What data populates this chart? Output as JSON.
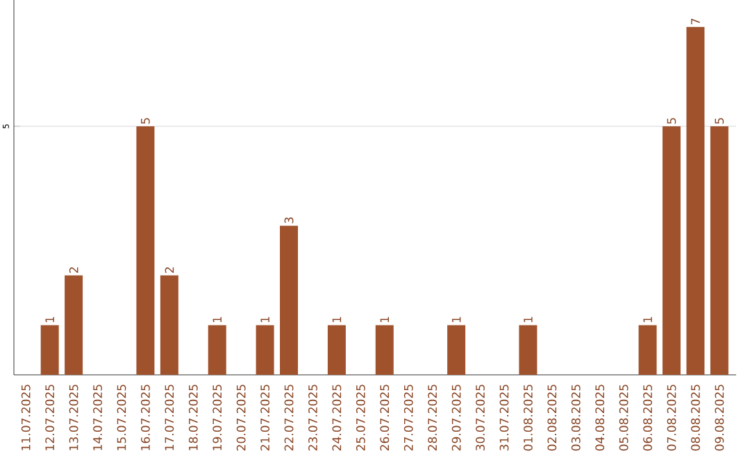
{
  "chart_data": {
    "type": "bar",
    "categories": [
      "11.07.2025",
      "12.07.2025",
      "13.07.2025",
      "14.07.2025",
      "15.07.2025",
      "16.07.2025",
      "17.07.2025",
      "18.07.2025",
      "19.07.2025",
      "20.07.2025",
      "21.07.2025",
      "22.07.2025",
      "23.07.2025",
      "24.07.2025",
      "25.07.2025",
      "26.07.2025",
      "27.07.2025",
      "28.07.2025",
      "29.07.2025",
      "30.07.2025",
      "31.07.2025",
      "01.08.2025",
      "02.08.2025",
      "03.08.2025",
      "04.08.2025",
      "05.08.2025",
      "06.08.2025",
      "07.08.2025",
      "08.08.2025",
      "09.08.2025"
    ],
    "values": [
      0,
      1,
      2,
      0,
      0,
      5,
      2,
      0,
      1,
      0,
      1,
      3,
      0,
      1,
      0,
      1,
      0,
      0,
      1,
      0,
      0,
      1,
      0,
      0,
      0,
      0,
      1,
      5,
      7,
      5
    ],
    "value_labels": [
      null,
      "1",
      "2",
      null,
      null,
      "5",
      "2",
      null,
      "1",
      null,
      "1",
      "3",
      null,
      "1",
      null,
      "1",
      null,
      null,
      "1",
      null,
      null,
      "1",
      null,
      null,
      null,
      null,
      "1",
      "5",
      "7",
      "5"
    ],
    "color": "#a0522d",
    "ylim": [
      0,
      7.54
    ],
    "yticks": [
      5
    ],
    "grid": "y"
  }
}
